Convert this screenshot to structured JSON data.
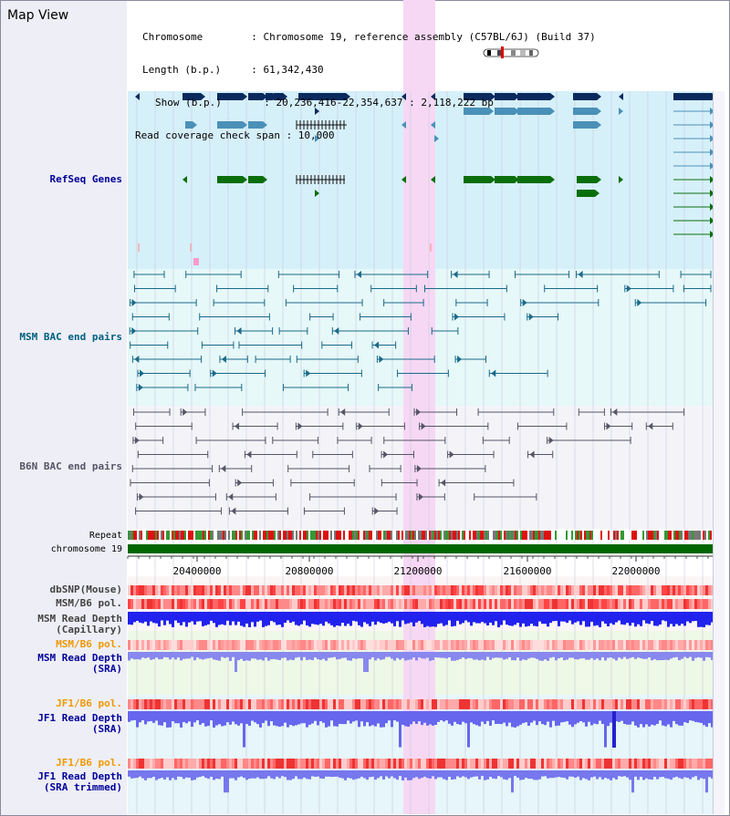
{
  "view": {
    "title": "Map View"
  },
  "header": {
    "rows": [
      "Chromosome        : Chromosome 19, reference assembly (C57BL/6J) (Build 37)",
      "Length (b.p.)     : 61,342,430",
      "Show (b.p.)       : 20,236,416-22,354,637 : 2,118,222 bp",
      "Read coverage check span : 10,000"
    ]
  },
  "tracks": {
    "refseq": "RefSeq Genes",
    "msm_bac": "MSM BAC end pairs",
    "b6n_bac": "B6N BAC end pairs",
    "repeat": "Repeat",
    "chromosome": "chromosome 19",
    "dbsnp": "dbSNP(Mouse)",
    "msm_b6_pol": "MSM/B6 pol.",
    "msm_depth_cap_1": "MSM Read Depth",
    "msm_depth_cap_2": "(Capillary)",
    "msm_b6_pol_2": "MSM/B6 pol.",
    "msm_depth_sra_1": "MSM Read Depth",
    "msm_depth_sra_2": "(SRA)",
    "jf1_b6_pol": "JF1/B6 pol.",
    "jf1_depth_sra_1": "JF1 Read Depth",
    "jf1_depth_sra_2": "(SRA)",
    "jf1_b6_pol_2": "JF1/B6 pol.",
    "jf1_depth_trim_1": "JF1 Read Depth",
    "jf1_depth_trim_2": "(SRA trimmed)"
  },
  "axis": {
    "ticks": [
      "20400000",
      "20800000",
      "21200000",
      "21600000",
      "22000000"
    ]
  },
  "colors": {
    "refseq_bg": "#d6f0fa",
    "msm_bg": "#e6f8f8",
    "b6n_bg": "#f4f4f8",
    "highlight": "#f6d8f4",
    "chromosome": "#006600",
    "navy": "#0a2a5e",
    "steel": "#4a90b8",
    "green": "#0a6e0a"
  }
}
